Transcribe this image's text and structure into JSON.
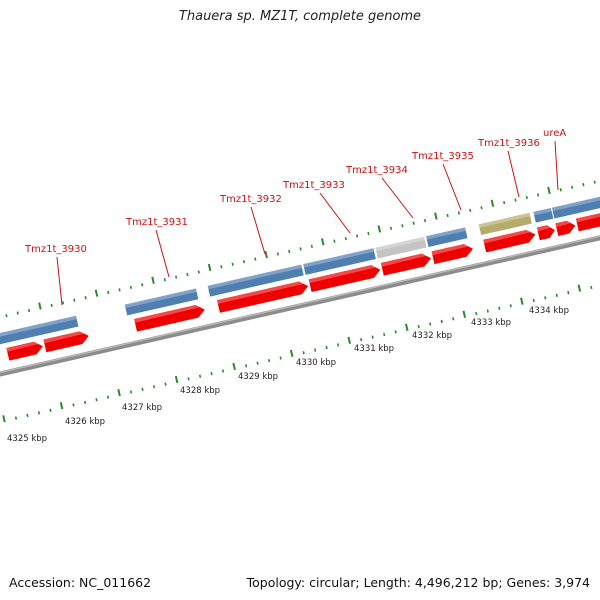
{
  "title": "Thauera sp. MZ1T, complete genome",
  "footer": {
    "accession": "Accession: NC_011662",
    "topology": "Topology: circular; Length: 4,496,212 bp; Genes: 3,974"
  },
  "colors": {
    "backbone": "#8c8c8c",
    "cds_forward": "#ee0000",
    "gene_blue": "#4f7fb0",
    "gene_gray": "#c4c4c4",
    "gene_olive": "#b4ac6c",
    "tick": "#2b8a2b",
    "label": "#cc1111"
  },
  "gene_labels": [
    "Tmz1t_3930",
    "Tmz1t_3931",
    "Tmz1t_3932",
    "Tmz1t_3933",
    "Tmz1t_3934",
    "Tmz1t_3935",
    "Tmz1t_3936",
    "ureA"
  ],
  "scale_labels": [
    "4325 kbp",
    "4326 kbp",
    "4327 kbp",
    "4328 kbp",
    "4329 kbp",
    "4330 kbp",
    "4331 kbp",
    "4332 kbp",
    "4333 kbp",
    "4334 kbp"
  ]
}
